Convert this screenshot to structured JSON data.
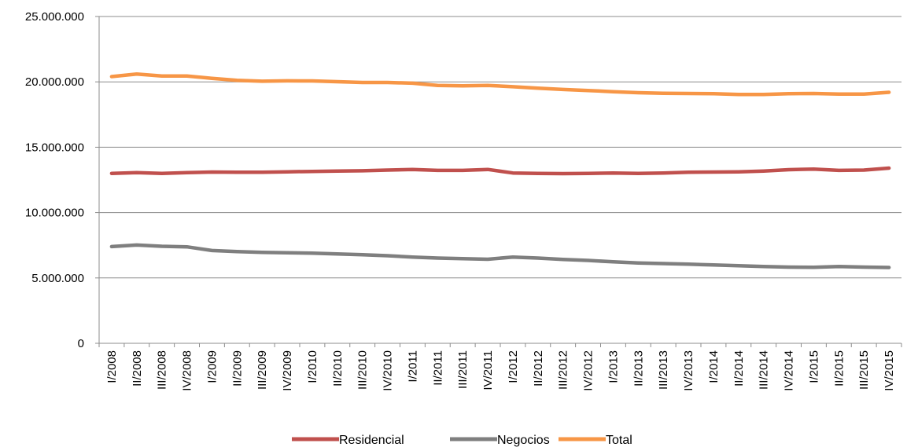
{
  "chart_data": {
    "type": "line",
    "title": "",
    "xlabel": "",
    "ylabel": "",
    "ylim": [
      0,
      25000000
    ],
    "y_ticks": [
      0,
      5000000,
      10000000,
      15000000,
      20000000,
      25000000
    ],
    "y_tick_labels": [
      "0",
      "5.000.000",
      "10.000.000",
      "15.000.000",
      "20.000.000",
      "25.000.000"
    ],
    "grid": "horizontal",
    "legend_position": "bottom",
    "categories": [
      "I/2008",
      "II/2008",
      "III/2008",
      "IV/2008",
      "I/2009",
      "II/2009",
      "III/2009",
      "IV/2009",
      "I/2010",
      "II/2010",
      "III/2010",
      "IV/2010",
      "I/2011",
      "II/2011",
      "III/2011",
      "IV/2011",
      "I/2012",
      "II/2012",
      "III/2012",
      "IV/2012",
      "I/2013",
      "II/2013",
      "III/2013",
      "IV/2013",
      "I/2014",
      "II/2014",
      "III/2014",
      "IV/2014",
      "I/2015",
      "II/2015",
      "III/2015",
      "IV/2015"
    ],
    "series": [
      {
        "name": "Residencial",
        "color": "#c0504d",
        "values": [
          13000000,
          13050000,
          13000000,
          13050000,
          13100000,
          13080000,
          13080000,
          13120000,
          13150000,
          13180000,
          13200000,
          13250000,
          13300000,
          13230000,
          13230000,
          13300000,
          13030000,
          13000000,
          12980000,
          13000000,
          13020000,
          13000000,
          13030000,
          13080000,
          13100000,
          13120000,
          13180000,
          13280000,
          13330000,
          13230000,
          13250000,
          13400000
        ]
      },
      {
        "name": "Negocios",
        "color": "#7f7f7f",
        "values": [
          7400000,
          7520000,
          7420000,
          7380000,
          7100000,
          7020000,
          6960000,
          6930000,
          6900000,
          6830000,
          6770000,
          6700000,
          6600000,
          6520000,
          6470000,
          6430000,
          6600000,
          6520000,
          6420000,
          6340000,
          6230000,
          6150000,
          6100000,
          6050000,
          6000000,
          5940000,
          5880000,
          5830000,
          5810000,
          5870000,
          5830000,
          5800000
        ]
      },
      {
        "name": "Total",
        "color": "#f79646",
        "values": [
          20400000,
          20600000,
          20450000,
          20450000,
          20270000,
          20120000,
          20050000,
          20080000,
          20070000,
          20010000,
          19950000,
          19950000,
          19900000,
          19730000,
          19700000,
          19730000,
          19630000,
          19520000,
          19420000,
          19340000,
          19250000,
          19170000,
          19130000,
          19110000,
          19100000,
          19040000,
          19040000,
          19090000,
          19110000,
          19070000,
          19060000,
          19200000
        ]
      }
    ]
  }
}
